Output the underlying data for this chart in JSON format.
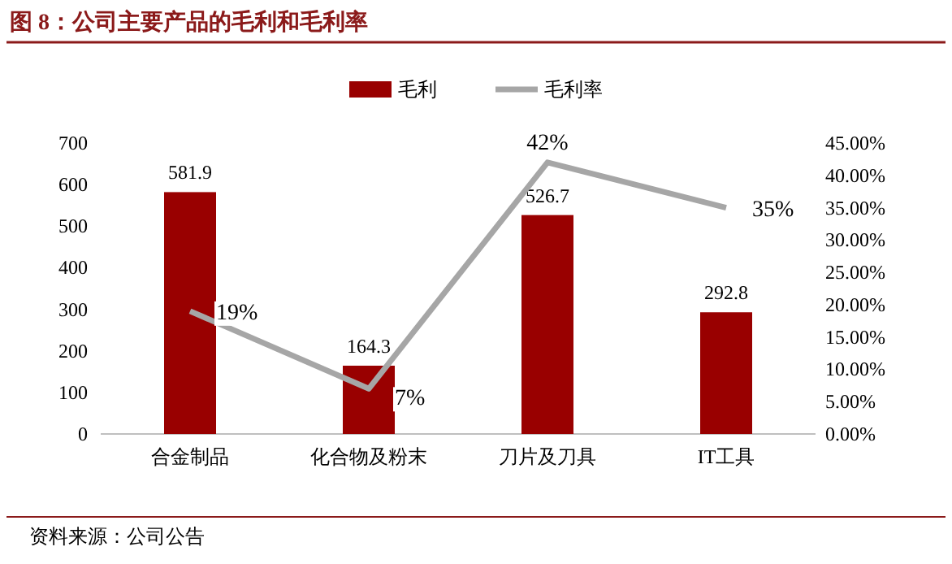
{
  "chart_data": {
    "type": "bar",
    "title": "图 8：公司主要产品的毛利和毛利率",
    "annotations": [
      "资料来源：公司公告"
    ],
    "categories": [
      "合金制品",
      "化合物及粉末",
      "刀片及刀具",
      "IT工具"
    ],
    "series": [
      {
        "name": "毛利",
        "color": "#990000",
        "values": [
          581.9,
          164.3,
          526.7,
          292.8
        ],
        "value_labels": [
          "581.9",
          "164.3",
          "526.7",
          "292.8"
        ]
      },
      {
        "name": "毛利率",
        "type": "line",
        "axis": "y2",
        "color": "#a6a6a6",
        "values": [
          19,
          7,
          42,
          35
        ],
        "value_labels": [
          "19%",
          "7%",
          "42%",
          "35%"
        ]
      }
    ],
    "ylim": [
      0,
      700
    ],
    "yticks": [
      0,
      100,
      200,
      300,
      400,
      500,
      600,
      700
    ],
    "y2lim": [
      0,
      45
    ],
    "y2ticks": [
      {
        "value": 0,
        "label": "0.00%"
      },
      {
        "value": 5,
        "label": "5.00%"
      },
      {
        "value": 10,
        "label": "10.00%"
      },
      {
        "value": 15,
        "label": "15.00%"
      },
      {
        "value": 20,
        "label": "20.00%"
      },
      {
        "value": 25,
        "label": "25.00%"
      },
      {
        "value": 30,
        "label": "30.00%"
      },
      {
        "value": 35,
        "label": "35.00%"
      },
      {
        "value": 40,
        "label": "40.00%"
      },
      {
        "value": 45,
        "label": "45.00%"
      }
    ],
    "legend": "top",
    "grid": false,
    "marker": "none",
    "line_style": "solid"
  }
}
